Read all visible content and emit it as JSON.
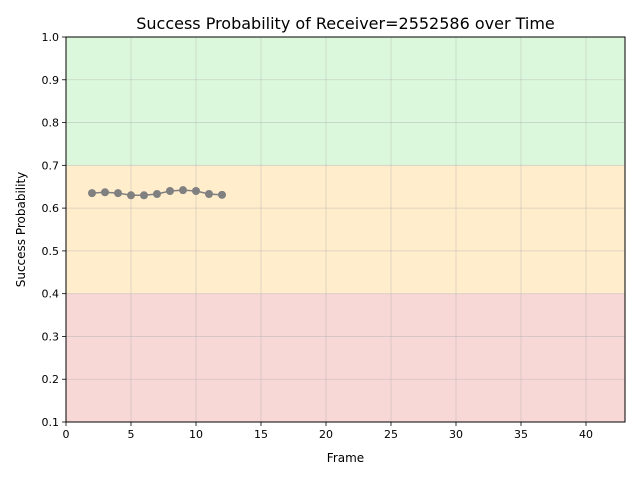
{
  "chart_data": {
    "type": "line",
    "title": "Success Probability of Receiver=2552586 over Time",
    "xlabel": "Frame",
    "ylabel": "Success Probability",
    "xlim": [
      0,
      43
    ],
    "ylim": [
      0.1,
      1.0
    ],
    "x_ticks": [
      0,
      5,
      10,
      15,
      20,
      25,
      30,
      35,
      40
    ],
    "y_ticks": [
      0.1,
      0.2,
      0.3,
      0.4,
      0.5,
      0.6,
      0.7,
      0.8,
      0.9,
      1.0
    ],
    "x_tick_labels": [
      "0",
      "5",
      "10",
      "15",
      "20",
      "25",
      "30",
      "35",
      "40"
    ],
    "y_tick_labels": [
      "0.1",
      "0.2",
      "0.3",
      "0.4",
      "0.5",
      "0.6",
      "0.7",
      "0.8",
      "0.9",
      "1.0"
    ],
    "grid": true,
    "bands": [
      {
        "from": 0.1,
        "to": 0.4,
        "color": "#f8d7d7"
      },
      {
        "from": 0.4,
        "to": 0.7,
        "color": "#ffedcc"
      },
      {
        "from": 0.7,
        "to": 1.0,
        "color": "#dcf8dc"
      }
    ],
    "series": [
      {
        "color": "#808080",
        "x": [
          2,
          3,
          4,
          5,
          6,
          7,
          8,
          9,
          10,
          11,
          12
        ],
        "values": [
          0.635,
          0.637,
          0.635,
          0.63,
          0.63,
          0.633,
          0.64,
          0.642,
          0.64,
          0.633,
          0.631
        ]
      }
    ]
  }
}
